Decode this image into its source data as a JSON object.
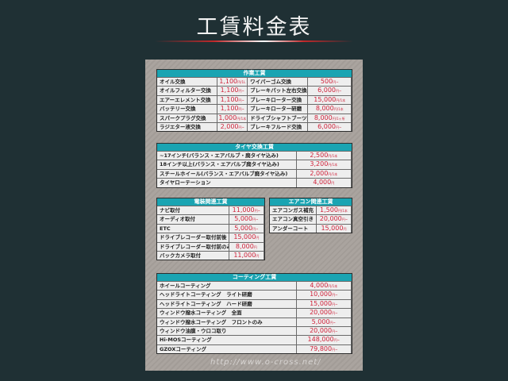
{
  "title": "工賃料金表",
  "watermark": "http://www.o-cross.net/",
  "sections": [
    {
      "id": "work",
      "header": "作業工賃",
      "rows": [
        [
          "オイル交換",
          "1,100",
          "円/1L",
          "ワイパーゴム交換",
          "500",
          "円~"
        ],
        [
          "オイルフィルター交換",
          "1,100",
          "円~",
          "ブレーキパット左右交換",
          "6,000",
          "円~"
        ],
        [
          "エアーエレメント交換",
          "1,100",
          "円~",
          "ブレーキローター交換",
          "15,000",
          "円/1本"
        ],
        [
          "バッテリー交換",
          "1,100",
          "円~",
          "ブレーキローター研磨",
          "8,000",
          "円/1本"
        ],
        [
          "スパークプラグ交換",
          "1,000",
          "円/1本",
          "ドライブシャフトブーツ交換",
          "8,000",
          "円/1ヶ所"
        ],
        [
          "ラジエター液交換",
          "2,000",
          "円~",
          "ブレーキフルード交換",
          "6,000",
          "円~"
        ]
      ]
    },
    {
      "id": "tire",
      "header": "タイヤ交換工賃",
      "rows": [
        [
          "~17インチ(バランス・エアバルブ・廃タイヤ込み)",
          "2,500",
          "円/1本"
        ],
        [
          "18インチ以上(バランス・エアバルブ廃タイヤ込み)",
          "3,200",
          "円/1本"
        ],
        [
          "スチールホイール(バランス・エアバルブ廃タイヤ込み)",
          "2,000",
          "円/1本"
        ],
        [
          "タイヤローテーション",
          "4,000",
          "円"
        ]
      ]
    },
    {
      "id": "electric",
      "header": "電装関連工賃",
      "rows": [
        [
          "ナビ取付",
          "11,000",
          "円~"
        ],
        [
          "オーディオ取付",
          "5,000",
          "円~"
        ],
        [
          "ETC",
          "5,000",
          "円~"
        ],
        [
          "ドライブレコーダー取付前後",
          "15,000",
          "円"
        ],
        [
          "ドライブレコーダー取付前のみ",
          "8,000",
          "円"
        ],
        [
          "バックカメラ取付",
          "11,000",
          "円"
        ]
      ]
    },
    {
      "id": "aircon",
      "header": "エアコン関連工賃",
      "rows": [
        [
          "エアコンガス補充",
          "1,500",
          "円/1本"
        ],
        [
          "エアコン真空引き",
          "20,000",
          "円~"
        ],
        [
          "アンダーコート",
          "15,000",
          "円"
        ]
      ]
    },
    {
      "id": "coating",
      "header": "コーティング工賃",
      "rows": [
        [
          "ホイールコーティング",
          "4,000",
          "円/1本"
        ],
        [
          "ヘッドライトコーティング　ライト研磨",
          "10,000",
          "円~"
        ],
        [
          "ヘッドライトコーティング　ハード研磨",
          "15,000",
          "円~"
        ],
        [
          "ウィンドウ撥水コーティング　全面",
          "20,000",
          "円~"
        ],
        [
          "ウィンドウ撥水コーティング　フロントのみ",
          "5,000",
          "円~"
        ],
        [
          "ウィンドウ油膜・ウロコ取り",
          "20,000",
          "円~"
        ],
        [
          "Hi-MOSコーティング",
          "148,000",
          "円~"
        ],
        [
          "GZOXコーティング",
          "79,800",
          "円~"
        ]
      ]
    }
  ],
  "colors": {
    "background": "#1f3034",
    "header": "#1aa4b2",
    "price": "#d0233b"
  }
}
